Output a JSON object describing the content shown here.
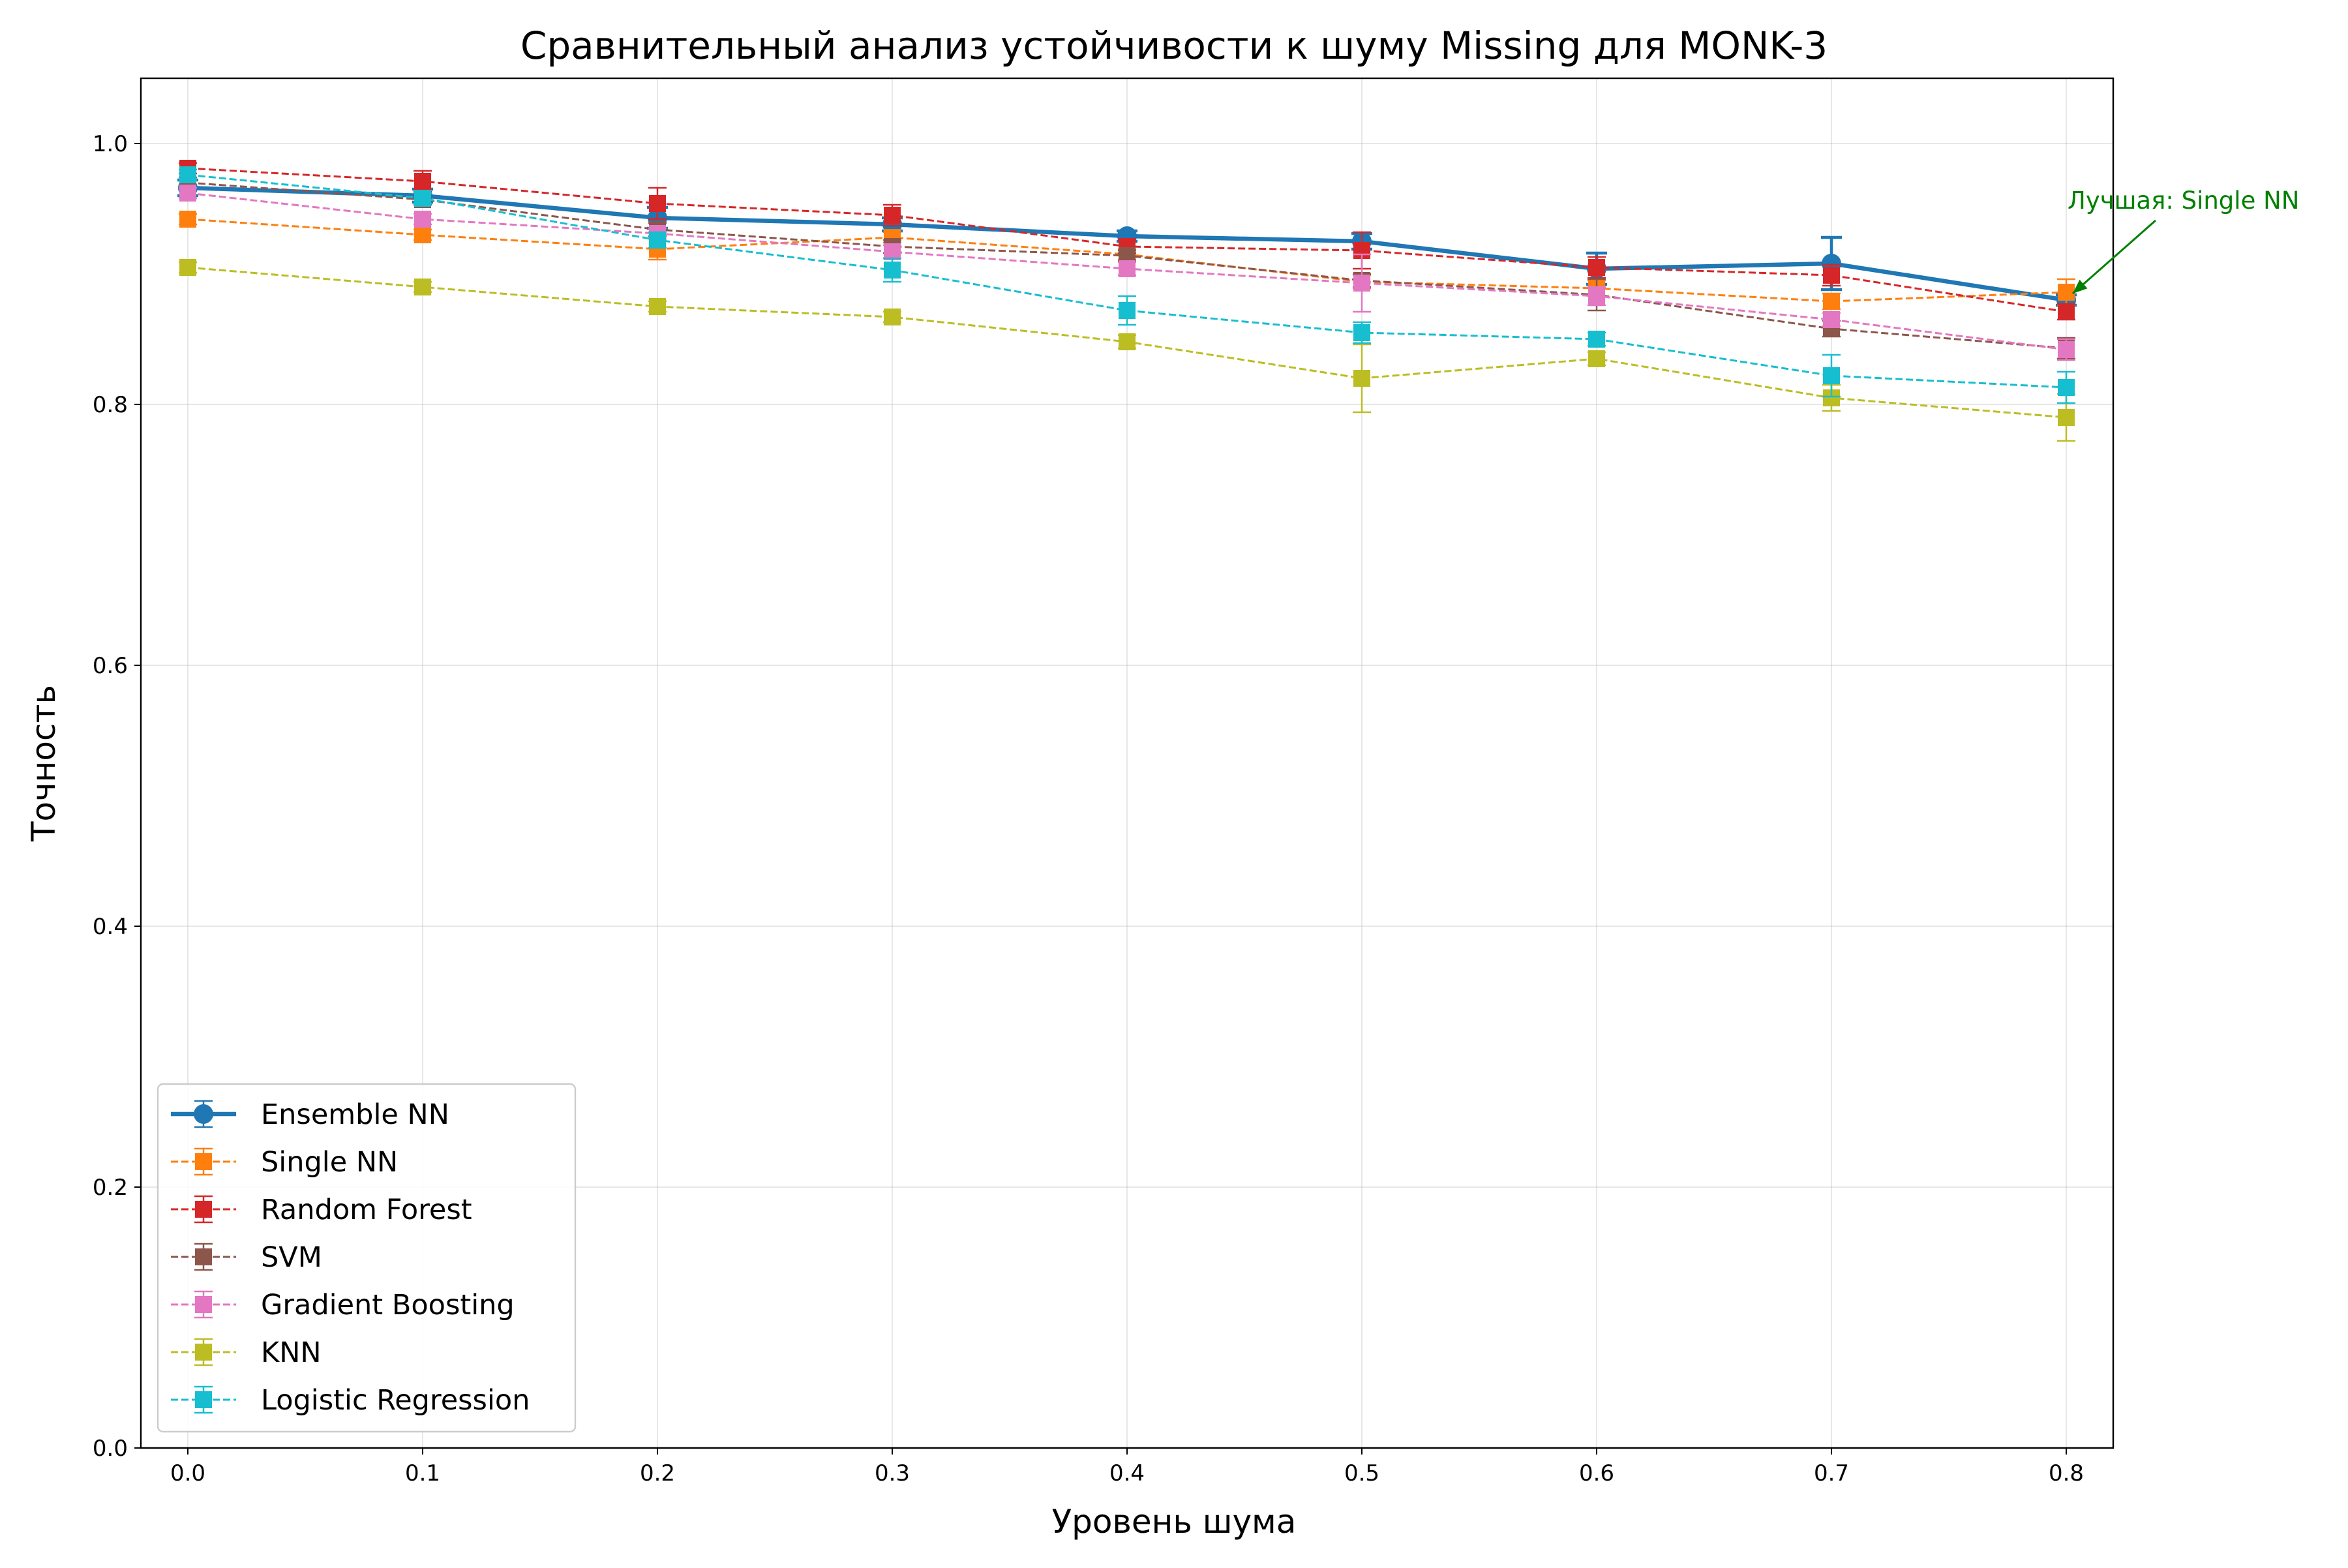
{
  "chart_data": {
    "type": "line",
    "title": "Сравнительный анализ устойчивости к шуму Missing для MONK-3",
    "xlabel": "Уровень шума",
    "ylabel": "Точность",
    "xlim": [
      -0.02,
      0.82
    ],
    "ylim": [
      0.0,
      1.05
    ],
    "x": [
      0.0,
      0.1,
      0.2,
      0.3,
      0.4,
      0.5,
      0.6,
      0.7,
      0.8
    ],
    "xticks": [
      "0.0",
      "0.1",
      "0.2",
      "0.3",
      "0.4",
      "0.5",
      "0.6",
      "0.7",
      "0.8"
    ],
    "yticks": [
      "0.0",
      "0.2",
      "0.4",
      "0.6",
      "0.8",
      "1.0"
    ],
    "grid": true,
    "legend_position": "lower-left",
    "series": [
      {
        "name": "Ensemble NN",
        "color": "#1f77b4",
        "marker": "circle",
        "linestyle": "solid",
        "values": [
          0.966,
          0.96,
          0.943,
          0.938,
          0.929,
          0.925,
          0.904,
          0.908,
          0.88
        ],
        "errors": [
          0.006,
          0.005,
          0.008,
          0.005,
          0.004,
          0.006,
          0.012,
          0.02,
          0.004
        ]
      },
      {
        "name": "Single NN",
        "color": "#ff7f0e",
        "marker": "square",
        "linestyle": "dashed",
        "values": [
          0.942,
          0.93,
          0.919,
          0.928,
          0.915,
          0.894,
          0.889,
          0.879,
          0.886
        ],
        "errors": [
          0.004,
          0.004,
          0.008,
          0.004,
          0.004,
          0.005,
          0.006,
          0.006,
          0.01
        ]
      },
      {
        "name": "Random Forest",
        "color": "#d62728",
        "marker": "square",
        "linestyle": "dashed",
        "values": [
          0.981,
          0.971,
          0.954,
          0.945,
          0.921,
          0.918,
          0.905,
          0.899,
          0.871
        ],
        "errors": [
          0.004,
          0.008,
          0.012,
          0.008,
          0.005,
          0.014,
          0.008,
          0.008,
          0.006
        ]
      },
      {
        "name": "SVM",
        "color": "#8c564b",
        "marker": "square",
        "linestyle": "dashed",
        "values": [
          0.97,
          0.957,
          0.934,
          0.921,
          0.914,
          0.895,
          0.884,
          0.858,
          0.843
        ],
        "errors": [
          0.004,
          0.004,
          0.005,
          0.005,
          0.004,
          0.005,
          0.012,
          0.006,
          0.008
        ]
      },
      {
        "name": "Gradient Boosting",
        "color": "#e377c2",
        "marker": "square",
        "linestyle": "dashed",
        "values": [
          0.962,
          0.942,
          0.931,
          0.917,
          0.904,
          0.893,
          0.883,
          0.865,
          0.842
        ],
        "errors": [
          0.004,
          0.004,
          0.004,
          0.005,
          0.005,
          0.022,
          0.007,
          0.005,
          0.008
        ]
      },
      {
        "name": "KNN",
        "color": "#bcbd22",
        "marker": "square",
        "linestyle": "dashed",
        "values": [
          0.905,
          0.89,
          0.875,
          0.867,
          0.848,
          0.82,
          0.835,
          0.805,
          0.79
        ],
        "errors": [
          0.004,
          0.004,
          0.004,
          0.004,
          0.005,
          0.026,
          0.005,
          0.01,
          0.018
        ]
      },
      {
        "name": "Logistic Regression",
        "color": "#17becf",
        "marker": "square",
        "linestyle": "dashed",
        "values": [
          0.976,
          0.958,
          0.926,
          0.903,
          0.872,
          0.855,
          0.85,
          0.822,
          0.813
        ],
        "errors": [
          0.004,
          0.004,
          0.006,
          0.009,
          0.011,
          0.008,
          0.005,
          0.016,
          0.012
        ]
      }
    ],
    "annotation": {
      "text": "Лучшая: Single NN",
      "color": "#008000",
      "x": 0.8,
      "y": 0.886
    }
  }
}
